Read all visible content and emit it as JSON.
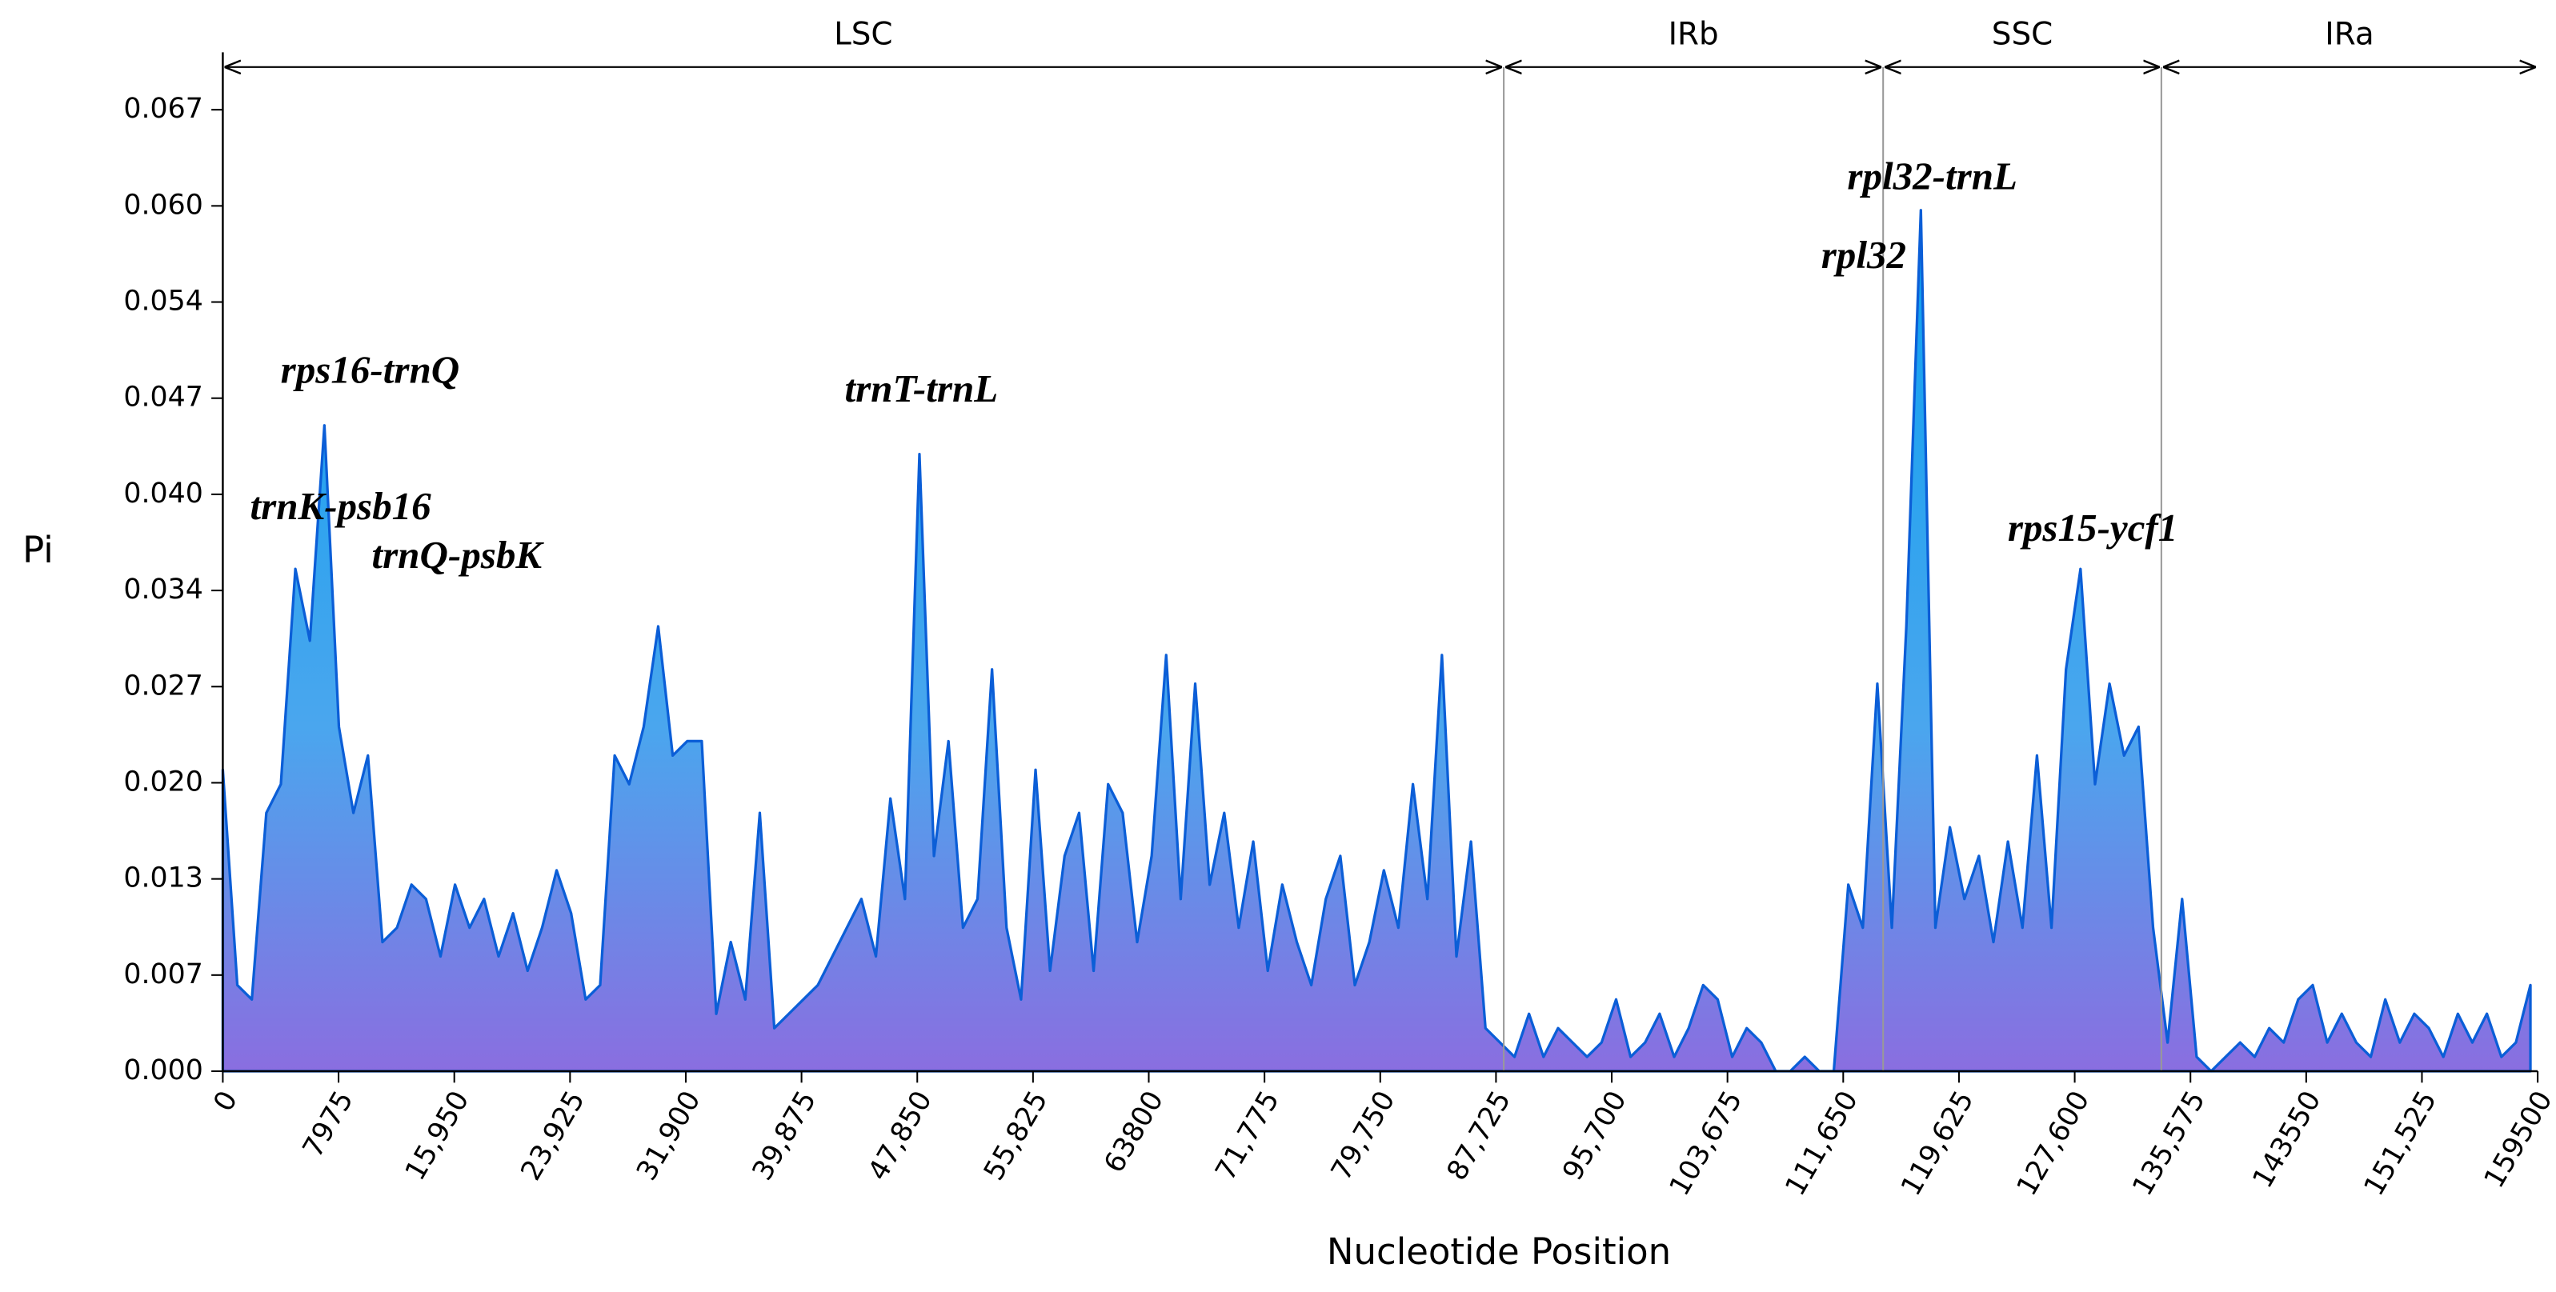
{
  "chart_data": {
    "type": "area",
    "x_label": "Nucleotide Position",
    "y_label": "Pi",
    "color": "#0b5ed7",
    "x": [
      0,
      1000,
      2000,
      3000,
      4000,
      5000,
      6000,
      7000,
      8000,
      9000,
      10000,
      11000,
      12000,
      13000,
      14000,
      15000,
      16000,
      17000,
      18000,
      19000,
      20000,
      21000,
      22000,
      23000,
      24000,
      25000,
      26000,
      27000,
      28000,
      29000,
      30000,
      31000,
      32000,
      33000,
      34000,
      35000,
      36000,
      37000,
      38000,
      39000,
      40000,
      41000,
      42000,
      43000,
      44000,
      45000,
      46000,
      47000,
      48000,
      49000,
      50000,
      51000,
      52000,
      53000,
      54000,
      55000,
      56000,
      57000,
      58000,
      59000,
      60000,
      61000,
      62000,
      63000,
      64000,
      65000,
      66000,
      67000,
      68000,
      69000,
      70000,
      71000,
      72000,
      73000,
      74000,
      75000,
      76000,
      77000,
      78000,
      79000,
      80000,
      81000,
      82000,
      83000,
      84000,
      85000,
      86000,
      87000,
      88000,
      89000,
      90000,
      91000,
      92000,
      93000,
      94000,
      95000,
      96000,
      97000,
      98000,
      99000,
      100000,
      101000,
      102000,
      103000,
      104000,
      105000,
      106000,
      107000,
      108000,
      109000,
      110000,
      111000,
      112000,
      113000,
      114000,
      115000,
      116000,
      117000,
      118000,
      119000,
      120000,
      121000,
      122000,
      123000,
      124000,
      125000,
      126000,
      127000,
      128000,
      129000,
      130000,
      131000,
      132000,
      133000,
      134000,
      135000,
      136000,
      137000,
      138000,
      139000,
      140000,
      141000,
      142000,
      143000,
      144000,
      145000,
      146000,
      147000,
      148000,
      149000,
      150000,
      151000,
      152000,
      153000,
      154000,
      155000,
      156000,
      157000,
      158000,
      159000
    ],
    "values": [
      0.021,
      0.006,
      0.005,
      0.018,
      0.02,
      0.035,
      0.03,
      0.045,
      0.024,
      0.018,
      0.022,
      0.009,
      0.01,
      0.013,
      0.012,
      0.008,
      0.013,
      0.01,
      0.012,
      0.008,
      0.011,
      0.007,
      0.01,
      0.014,
      0.011,
      0.005,
      0.006,
      0.022,
      0.02,
      0.024,
      0.031,
      0.022,
      0.023,
      0.023,
      0.004,
      0.009,
      0.005,
      0.018,
      0.003,
      0.004,
      0.005,
      0.006,
      0.008,
      0.01,
      0.012,
      0.008,
      0.019,
      0.012,
      0.043,
      0.015,
      0.023,
      0.01,
      0.012,
      0.028,
      0.01,
      0.005,
      0.021,
      0.007,
      0.015,
      0.018,
      0.007,
      0.02,
      0.018,
      0.009,
      0.015,
      0.029,
      0.012,
      0.027,
      0.013,
      0.018,
      0.01,
      0.016,
      0.007,
      0.013,
      0.009,
      0.006,
      0.012,
      0.015,
      0.006,
      0.009,
      0.014,
      0.01,
      0.02,
      0.012,
      0.029,
      0.008,
      0.016,
      0.003,
      0.002,
      0.001,
      0.004,
      0.001,
      0.003,
      0.002,
      0.001,
      0.002,
      0.005,
      0.001,
      0.002,
      0.004,
      0.001,
      0.003,
      0.006,
      0.005,
      0.001,
      0.003,
      0.002,
      0,
      0,
      0.001,
      0,
      0,
      0.013,
      0.01,
      0.027,
      0.01,
      0.031,
      0.06,
      0.01,
      0.017,
      0.012,
      0.015,
      0.009,
      0.016,
      0.01,
      0.022,
      0.01,
      0.028,
      0.035,
      0.02,
      0.027,
      0.022,
      0.024,
      0.01,
      0.002,
      0.012,
      0.001,
      0,
      0.001,
      0.002,
      0.001,
      0.003,
      0.002,
      0.005,
      0.006,
      0.002,
      0.004,
      0.002,
      0.001,
      0.005,
      0.002,
      0.004,
      0.003,
      0.001,
      0.004,
      0.002,
      0.004,
      0.001,
      0.002,
      0.006
    ],
    "xlim": [
      0,
      159500
    ],
    "ylim": [
      0,
      0.071
    ],
    "xticks": [
      0,
      7975,
      {
        "value": 15950,
        "label": "15,950"
      },
      {
        "value": 23925,
        "label": "23,925"
      },
      {
        "value": 31900,
        "label": "31,900"
      },
      {
        "value": 39875,
        "label": "39,875"
      },
      {
        "value": 47850,
        "label": "47,850"
      },
      {
        "value": 55825,
        "label": "55,825"
      },
      63800,
      {
        "value": 71775,
        "label": "71,775"
      },
      {
        "value": 79750,
        "label": "79,750"
      },
      {
        "value": 87725,
        "label": "87,725"
      },
      {
        "value": 95700,
        "label": "95,700"
      },
      {
        "value": 103675,
        "label": "103,675"
      },
      {
        "value": 111650,
        "label": "111,650"
      },
      {
        "value": 119625,
        "label": "119,625"
      },
      {
        "value": 127600,
        "label": "127,600"
      },
      {
        "value": 135575,
        "label": "135,575"
      },
      143550,
      {
        "value": 151525,
        "label": "151,525"
      },
      159500
    ],
    "yticks": [
      {
        "value": 0,
        "label": "0.000"
      },
      {
        "value": 0.0067,
        "label": "0.007"
      },
      {
        "value": 0.0134,
        "label": "0.013"
      },
      {
        "value": 0.0201,
        "label": "0.020"
      },
      {
        "value": 0.0268,
        "label": "0.027"
      },
      {
        "value": 0.0335,
        "label": "0.034"
      },
      {
        "value": 0.0402,
        "label": "0.040"
      },
      {
        "value": 0.0469,
        "label": "0.047"
      },
      {
        "value": 0.0536,
        "label": "0.054"
      },
      {
        "value": 0.0603,
        "label": "0.060"
      },
      {
        "value": 0.067,
        "label": "0.067"
      }
    ],
    "regions": [
      {
        "label": "LSC",
        "start": 0,
        "end": 88260
      },
      {
        "label": "IRb",
        "start": 88260,
        "end": 114400
      },
      {
        "label": "SSC",
        "start": 114400,
        "end": 133570
      },
      {
        "label": "IRa",
        "start": 133570,
        "end": 159500
      }
    ],
    "annotations": [
      {
        "text": "rps16-trnQ",
        "x": 10145,
        "y": 0.0486
      },
      {
        "text": "trnK-psb16",
        "x": 8116,
        "y": 0.0391
      },
      {
        "text": "trnQ-psbK",
        "x": 16119,
        "y": 0.0357
      },
      {
        "text": "trnT-trnL",
        "x": 48131,
        "y": 0.0473
      },
      {
        "text": "rpl32-trnL",
        "x": 117790,
        "y": 0.0621
      },
      {
        "text": "rpl32",
        "x": 113060,
        "y": 0.0566
      },
      {
        "text": "rps15-ycf1",
        "x": 128840,
        "y": 0.0376
      }
    ]
  }
}
